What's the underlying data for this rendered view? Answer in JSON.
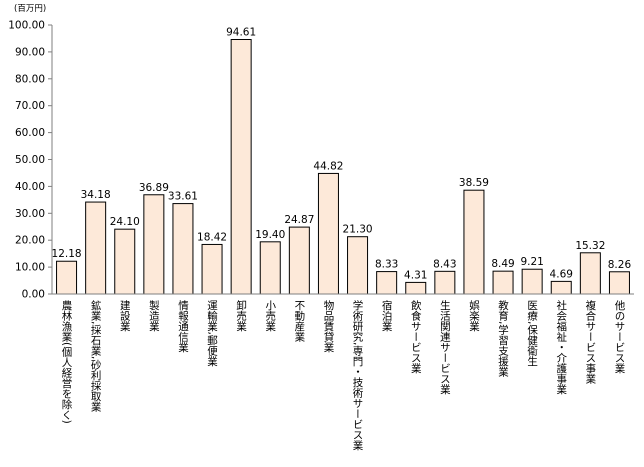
{
  "chart_data": {
    "type": "bar",
    "title": "",
    "xlabel": "",
    "ylabel": "",
    "unit_label": "(百万円)",
    "ylim": [
      0,
      100
    ],
    "yticks": [
      "0.00",
      "10.00",
      "20.00",
      "30.00",
      "40.00",
      "50.00",
      "60.00",
      "70.00",
      "80.00",
      "90.00",
      "100.00"
    ],
    "grid": false,
    "legend": "none",
    "colors": {
      "bar_fill": "#fde9d9",
      "bar_stroke": "#000000",
      "axis": "#7f7f7f"
    },
    "categories": [
      "農林漁業(個人経営を除く)",
      "鉱業,採石業,砂利採取業",
      "建設業",
      "製造業",
      "情報通信業",
      "運輸業,郵便業",
      "卸売業",
      "小売業",
      "不動産業",
      "物品賃貸業",
      "学術研究,専門・技術サービス業",
      "宿泊業",
      "飲食サービス業",
      "生活関連サービス業",
      "娯楽業",
      "教育,学習支援業",
      "医療,保健衛生",
      "社会福祉・介護事業",
      "複合サービス事業",
      "他のサービス業"
    ],
    "values": [
      12.18,
      34.18,
      24.1,
      36.89,
      33.61,
      18.42,
      94.61,
      19.4,
      24.87,
      44.82,
      21.3,
      8.33,
      4.31,
      8.43,
      38.59,
      8.49,
      9.21,
      4.69,
      15.32,
      8.26
    ],
    "value_labels": [
      "12.18",
      "34.18",
      "24.10",
      "36.89",
      "33.61",
      "18.42",
      "94.61",
      "19.40",
      "24.87",
      "44.82",
      "21.30",
      "8.33",
      "4.31",
      "8.43",
      "38.59",
      "8.49",
      "9.21",
      "4.69",
      "15.32",
      "8.26"
    ]
  }
}
